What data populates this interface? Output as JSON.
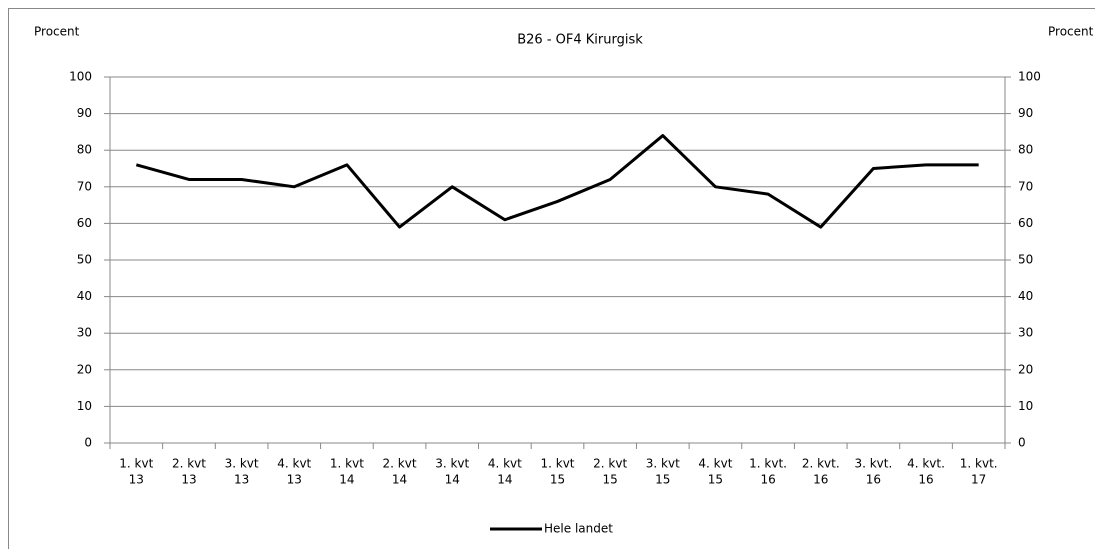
{
  "chart_data": {
    "type": "line",
    "title": "B26 - OF4 Kirurgisk",
    "ylabel": "Procent",
    "y2label": "Procent",
    "categories": [
      [
        "1. kvt",
        "13"
      ],
      [
        "2. kvt",
        "13"
      ],
      [
        "3. kvt",
        "13"
      ],
      [
        "4. kvt",
        "13"
      ],
      [
        "1. kvt",
        "14"
      ],
      [
        "2. kvt",
        "14"
      ],
      [
        "3. kvt",
        "14"
      ],
      [
        "4. kvt",
        "14"
      ],
      [
        "1. kvt",
        "15"
      ],
      [
        "2. kvt",
        "15"
      ],
      [
        "3. kvt",
        "15"
      ],
      [
        "4. kvt",
        "15"
      ],
      [
        "1. kvt.",
        "16"
      ],
      [
        "2. kvt.",
        "16"
      ],
      [
        "3. kvt.",
        "16"
      ],
      [
        "4. kvt.",
        "16"
      ],
      [
        "1. kvt.",
        "17"
      ]
    ],
    "series": [
      {
        "name": "Hele landet",
        "color": "#000000",
        "values": [
          76,
          72,
          72,
          70,
          76,
          59,
          70,
          61,
          66,
          72,
          84,
          70,
          68,
          59,
          75,
          76,
          76
        ]
      }
    ],
    "ylim": [
      0,
      100
    ],
    "yticks": [
      0,
      10,
      20,
      30,
      40,
      50,
      60,
      70,
      80,
      90,
      100
    ],
    "y2lim": [
      0,
      100
    ],
    "y2ticks": [
      0,
      10,
      20,
      30,
      40,
      50,
      60,
      70,
      80,
      90,
      100
    ],
    "grid": true,
    "legend": "bottom"
  }
}
